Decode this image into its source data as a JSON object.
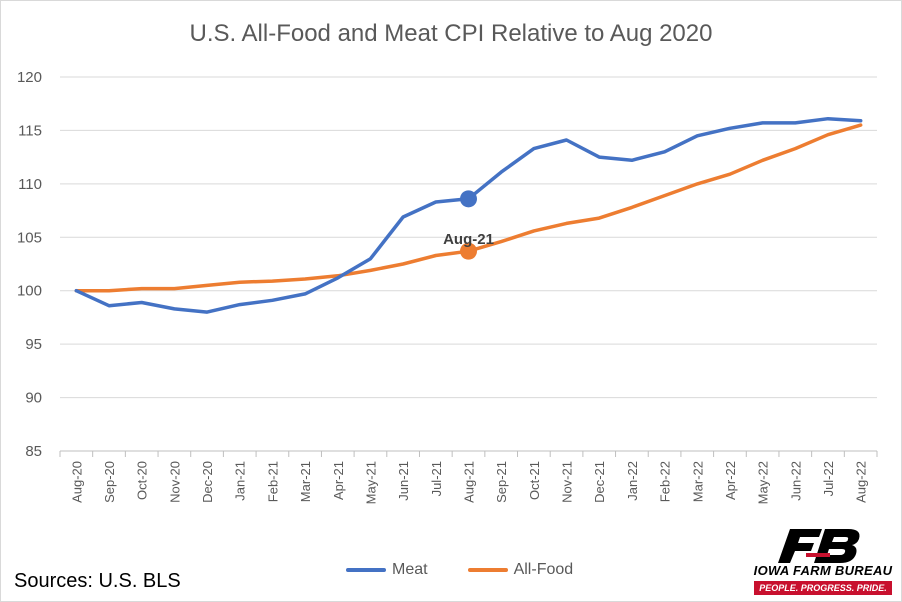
{
  "chart_data": {
    "type": "line",
    "title": "U.S. All-Food and Meat CPI Relative to Aug 2020",
    "categories": [
      "Aug-20",
      "Sep-20",
      "Oct-20",
      "Nov-20",
      "Dec-20",
      "Jan-21",
      "Feb-21",
      "Mar-21",
      "Apr-21",
      "May-21",
      "Jun-21",
      "Jul-21",
      "Aug-21",
      "Sep-21",
      "Oct-21",
      "Nov-21",
      "Dec-21",
      "Jan-22",
      "Feb-22",
      "Mar-22",
      "Apr-22",
      "May-22",
      "Jun-22",
      "Jul-22",
      "Aug-22"
    ],
    "series": [
      {
        "name": "Meat",
        "color": "#4472c4",
        "values": [
          100.0,
          98.6,
          98.9,
          98.3,
          98.0,
          98.7,
          99.1,
          99.7,
          101.2,
          103.0,
          106.9,
          108.3,
          108.6,
          111.1,
          113.3,
          114.1,
          112.5,
          112.2,
          113.0,
          114.5,
          115.2,
          115.7,
          115.7,
          116.1,
          115.9
        ]
      },
      {
        "name": "All-Food",
        "color": "#ed7d31",
        "values": [
          100.0,
          100.0,
          100.2,
          100.2,
          100.5,
          100.8,
          100.9,
          101.1,
          101.4,
          101.9,
          102.5,
          103.3,
          103.7,
          104.6,
          105.6,
          106.3,
          106.8,
          107.8,
          108.9,
          110.0,
          110.9,
          112.2,
          113.3,
          114.6,
          115.5
        ]
      }
    ],
    "ylim": [
      85,
      120
    ],
    "yticks": [
      85,
      90,
      95,
      100,
      105,
      110,
      115,
      120
    ],
    "grid": true,
    "legend_position": "bottom",
    "highlight": {
      "category": "Aug-21",
      "label": "Aug-21"
    }
  },
  "source_text": "Sources: U.S. BLS",
  "logo": {
    "name": "IOWA FARM BUREAU",
    "tagline": "PEOPLE. PROGRESS. PRIDE.",
    "color": "#c8102e"
  }
}
